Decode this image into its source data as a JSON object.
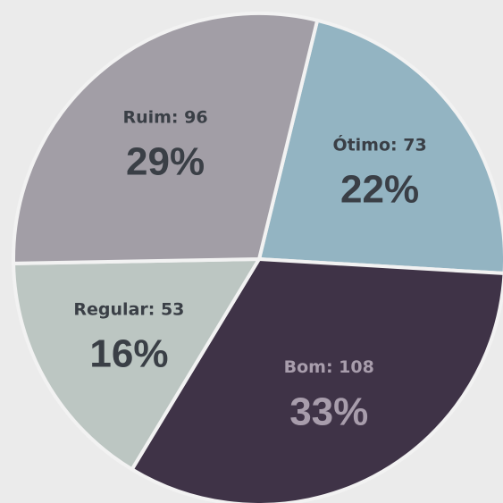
{
  "chart_data": {
    "type": "pie",
    "categories": [
      "Ótimo",
      "Bom",
      "Regular",
      "Ruim"
    ],
    "values": [
      73,
      108,
      53,
      96
    ],
    "value_labels": [
      "Ótimo: 73",
      "Bom: 108",
      "Regular: 53",
      "Ruim: 96"
    ],
    "percent_labels": [
      "22%",
      "33%",
      "16%",
      "29%"
    ],
    "colors": [
      "#93b4c2",
      "#3f3347",
      "#bcc6c2",
      "#a29ea6"
    ],
    "label_colors": [
      "#3a3f46",
      "#a89dac",
      "#3a3f46",
      "#3a3f46"
    ]
  }
}
